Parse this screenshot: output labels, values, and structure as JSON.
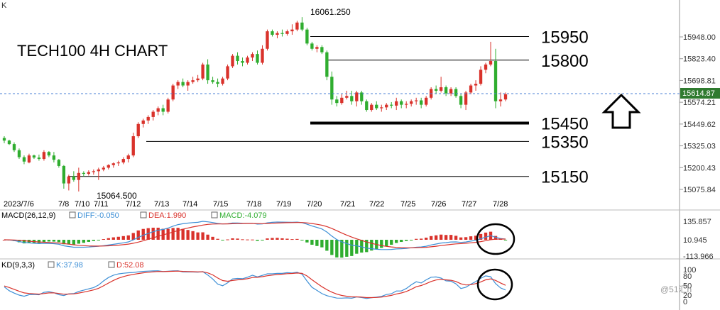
{
  "corner_label": "K",
  "watermark": "@51汇h",
  "chart_data": {
    "type": "candlestick",
    "title": "TECH100 4H CHART",
    "x_labels": [
      "2023/7/6",
      "7/8",
      "7/10",
      "7/11",
      "7/12",
      "7/13",
      "7/14",
      "7/15",
      "7/18",
      "7/19",
      "7/20",
      "7/21",
      "7/22",
      "7/25",
      "7/26",
      "7/27",
      "7/28"
    ],
    "y_ticks": [
      "15948.00",
      "15823.40",
      "15698.81",
      "15574.21",
      "15449.62",
      "15325.03",
      "15200.43",
      "15075.84"
    ],
    "current_price": "15614.87",
    "high_label": "16061.250",
    "low_label": "15064.500",
    "up_color": "#d9322b",
    "down_color": "#2fad2f",
    "levels": [
      {
        "label": "15950",
        "value": 15950
      },
      {
        "label": "15800",
        "value": 15815
      },
      {
        "label": "15450",
        "value": 15455
      },
      {
        "label": "15350",
        "value": 15350
      },
      {
        "label": "15150",
        "value": 15150
      }
    ],
    "candles": [
      [
        15370,
        15380,
        15340,
        15355
      ],
      [
        15355,
        15360,
        15330,
        15335
      ],
      [
        15335,
        15345,
        15290,
        15300
      ],
      [
        15300,
        15310,
        15250,
        15260
      ],
      [
        15260,
        15270,
        15220,
        15235
      ],
      [
        15230,
        15280,
        15225,
        15270
      ],
      [
        15270,
        15275,
        15250,
        15258
      ],
      [
        15258,
        15275,
        15240,
        15250
      ],
      [
        15250,
        15300,
        15240,
        15290
      ],
      [
        15290,
        15295,
        15260,
        15270
      ],
      [
        15270,
        15290,
        15230,
        15245
      ],
      [
        15245,
        15250,
        15200,
        15210
      ],
      [
        15210,
        15215,
        15080,
        15110
      ],
      [
        15110,
        15160,
        15070,
        15150
      ],
      [
        15150,
        15180,
        15120,
        15130
      ],
      [
        15130,
        15200,
        15064,
        15170
      ],
      [
        15170,
        15180,
        15150,
        15165
      ],
      [
        15165,
        15185,
        15155,
        15175
      ],
      [
        15175,
        15190,
        15160,
        15180
      ],
      [
        15180,
        15200,
        15130,
        15190
      ],
      [
        15190,
        15210,
        15180,
        15200
      ],
      [
        15200,
        15220,
        15190,
        15215
      ],
      [
        15215,
        15230,
        15200,
        15225
      ],
      [
        15225,
        15240,
        15210,
        15230
      ],
      [
        15230,
        15260,
        15220,
        15250
      ],
      [
        15250,
        15280,
        15230,
        15270
      ],
      [
        15270,
        15400,
        15260,
        15380
      ],
      [
        15380,
        15460,
        15370,
        15450
      ],
      [
        15450,
        15480,
        15430,
        15470
      ],
      [
        15470,
        15500,
        15450,
        15490
      ],
      [
        15490,
        15530,
        15470,
        15520
      ],
      [
        15520,
        15550,
        15500,
        15540
      ],
      [
        15540,
        15560,
        15500,
        15520
      ],
      [
        15520,
        15600,
        15510,
        15590
      ],
      [
        15590,
        15680,
        15580,
        15670
      ],
      [
        15670,
        15700,
        15650,
        15690
      ],
      [
        15690,
        15710,
        15660,
        15670
      ],
      [
        15670,
        15700,
        15640,
        15690
      ],
      [
        15690,
        15720,
        15680,
        15700
      ],
      [
        15700,
        15730,
        15690,
        15710
      ],
      [
        15710,
        15800,
        15700,
        15790
      ],
      [
        15790,
        15820,
        15680,
        15700
      ],
      [
        15700,
        15720,
        15680,
        15690
      ],
      [
        15690,
        15710,
        15660,
        15680
      ],
      [
        15680,
        15720,
        15670,
        15710
      ],
      [
        15710,
        15790,
        15700,
        15780
      ],
      [
        15780,
        15850,
        15770,
        15840
      ],
      [
        15840,
        15860,
        15790,
        15810
      ],
      [
        15810,
        15830,
        15780,
        15800
      ],
      [
        15800,
        15840,
        15790,
        15830
      ],
      [
        15830,
        15860,
        15810,
        15850
      ],
      [
        15850,
        15870,
        15790,
        15800
      ],
      [
        15800,
        15900,
        15790,
        15880
      ],
      [
        15880,
        15990,
        15870,
        15980
      ],
      [
        15980,
        15990,
        15950,
        15960
      ],
      [
        15960,
        15980,
        15940,
        15970
      ],
      [
        15970,
        15990,
        15950,
        15965
      ],
      [
        15965,
        15990,
        15955,
        15980
      ],
      [
        15980,
        16020,
        15960,
        15990
      ],
      [
        15990,
        16040,
        15980,
        16030
      ],
      [
        16030,
        16061,
        15980,
        15990
      ],
      [
        15990,
        16000,
        15900,
        15910
      ],
      [
        15910,
        15920,
        15870,
        15880
      ],
      [
        15880,
        15900,
        15860,
        15890
      ],
      [
        15890,
        15900,
        15850,
        15860
      ],
      [
        15860,
        15870,
        15700,
        15720
      ],
      [
        15720,
        15750,
        15560,
        15590
      ],
      [
        15590,
        15610,
        15550,
        15570
      ],
      [
        15570,
        15620,
        15560,
        15600
      ],
      [
        15600,
        15640,
        15590,
        15610
      ],
      [
        15610,
        15640,
        15560,
        15580
      ],
      [
        15580,
        15640,
        15550,
        15630
      ],
      [
        15630,
        15640,
        15560,
        15580
      ],
      [
        15580,
        15590,
        15520,
        15530
      ],
      [
        15530,
        15570,
        15520,
        15560
      ],
      [
        15560,
        15580,
        15530,
        15540
      ],
      [
        15540,
        15560,
        15520,
        15545
      ],
      [
        15545,
        15570,
        15530,
        15560
      ],
      [
        15560,
        15575,
        15540,
        15555
      ],
      [
        15555,
        15600,
        15530,
        15580
      ],
      [
        15580,
        15590,
        15540,
        15560
      ],
      [
        15560,
        15580,
        15540,
        15565
      ],
      [
        15565,
        15590,
        15550,
        15580
      ],
      [
        15580,
        15600,
        15560,
        15585
      ],
      [
        15585,
        15600,
        15540,
        15560
      ],
      [
        15560,
        15610,
        15550,
        15600
      ],
      [
        15600,
        15660,
        15590,
        15650
      ],
      [
        15650,
        15670,
        15620,
        15640
      ],
      [
        15640,
        15720,
        15630,
        15660
      ],
      [
        15660,
        15670,
        15610,
        15625
      ],
      [
        15625,
        15660,
        15610,
        15650
      ],
      [
        15650,
        15660,
        15600,
        15610
      ],
      [
        15610,
        15620,
        15540,
        15560
      ],
      [
        15560,
        15640,
        15530,
        15630
      ],
      [
        15630,
        15680,
        15620,
        15670
      ],
      [
        15670,
        15700,
        15640,
        15680
      ],
      [
        15680,
        15780,
        15670,
        15760
      ],
      [
        15760,
        15800,
        15740,
        15790
      ],
      [
        15790,
        15920,
        15780,
        15810
      ],
      [
        15810,
        15880,
        15540,
        15580
      ],
      [
        15580,
        15630,
        15550,
        15590
      ],
      [
        15590,
        15630,
        15580,
        15620
      ]
    ],
    "macd": {
      "label": "MACD(26,12,9)",
      "diff": "DIFF:-0.050",
      "dea": "DEA:1.990",
      "macd": "MACD:-4.079",
      "diff_color": "#3d8fd6",
      "dea_color": "#d9322b",
      "macd_color": "#2fad2f",
      "y_ticks": [
        "135.857",
        "10.945",
        "-113.966"
      ]
    },
    "kd": {
      "label": "KD(9,3,3)",
      "k": "K:37.98",
      "d": "D:52.08",
      "k_color": "#3d8fd6",
      "d_color": "#d9322b",
      "y_ticks": [
        "100",
        "80",
        "50",
        "20",
        "0"
      ]
    }
  }
}
